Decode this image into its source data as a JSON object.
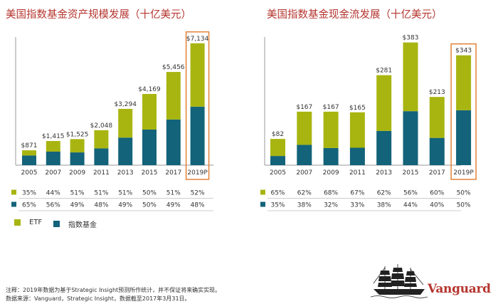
{
  "colors": {
    "etf": "#a8b511",
    "index_fund": "#13637a",
    "highlight": "#e07b2e",
    "title": "#b5352f"
  },
  "legend": {
    "etf_label": "ETF",
    "index_label": "指数基金"
  },
  "footnote": {
    "line1": "注释：2019年数据为基于Strategic Insight预测所作统计，并不保证将来确实实现。",
    "line2": "数据来源：Vanguard，Strategic Insight，数据截至2017年3月31日。"
  },
  "logo": {
    "text": "Vanguard"
  },
  "chart_data": [
    {
      "type": "bar",
      "title": "美国指数基金资产规模发展（十亿美元）",
      "categories": [
        "2005",
        "2007",
        "2009",
        "2011",
        "2013",
        "2015",
        "2017",
        "2019P"
      ],
      "totals": [
        871,
        1415,
        1525,
        2048,
        3294,
        4169,
        5456,
        7134
      ],
      "total_labels": [
        "$871",
        "$1,415",
        "$1,525",
        "$2,048",
        "$3,294",
        "$4,169",
        "$5,456",
        "$7,134"
      ],
      "series": [
        {
          "name": "ETF",
          "share_pct": [
            35,
            44,
            51,
            51,
            51,
            50,
            51,
            52
          ],
          "share_labels": [
            "35%",
            "44%",
            "51%",
            "51%",
            "51%",
            "50%",
            "51%",
            "52%"
          ]
        },
        {
          "name": "指数基金",
          "share_pct": [
            65,
            56,
            49,
            48,
            49,
            50,
            49,
            48
          ],
          "share_labels": [
            "65%",
            "56%",
            "49%",
            "48%",
            "49%",
            "50%",
            "49%",
            "48%"
          ]
        }
      ],
      "ylim": [
        0,
        7500
      ],
      "highlighted_category": "2019P"
    },
    {
      "type": "bar",
      "title": "美国指数基金现金流发展（十亿美元）",
      "categories": [
        "2005",
        "2007",
        "2009",
        "2011",
        "2013",
        "2015",
        "2017",
        "2019P"
      ],
      "totals": [
        82,
        167,
        167,
        165,
        281,
        383,
        213,
        343
      ],
      "total_labels": [
        "$82",
        "$167",
        "$167",
        "$165",
        "$281",
        "$383",
        "$213",
        "$343"
      ],
      "series": [
        {
          "name": "ETF",
          "share_pct": [
            65,
            62,
            68,
            67,
            62,
            56,
            60,
            50
          ],
          "share_labels": [
            "65%",
            "62%",
            "68%",
            "67%",
            "62%",
            "56%",
            "60%",
            "50%"
          ]
        },
        {
          "name": "指数基金",
          "share_pct": [
            35,
            38,
            32,
            33,
            38,
            44,
            40,
            50
          ],
          "share_labels": [
            "35%",
            "38%",
            "32%",
            "33%",
            "38%",
            "44%",
            "40%",
            "50%"
          ]
        }
      ],
      "ylim": [
        0,
        400
      ],
      "highlighted_category": "2019P"
    }
  ]
}
